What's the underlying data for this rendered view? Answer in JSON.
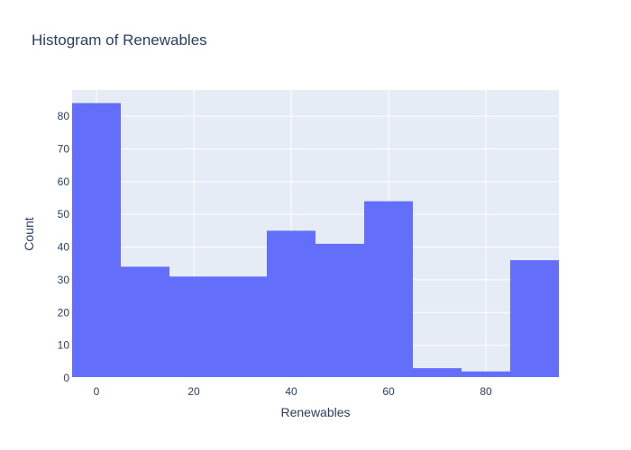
{
  "chart_data": {
    "type": "bar",
    "title": "Histogram of Renewables",
    "xlabel": "Renewables",
    "ylabel": "Count",
    "bin_edges": [
      -5,
      5,
      15,
      25,
      35,
      45,
      55,
      65,
      75,
      85,
      95
    ],
    "values": [
      84,
      34,
      31,
      31,
      45,
      41,
      54,
      3,
      2,
      36
    ],
    "xlim": [
      -5,
      95
    ],
    "ylim": [
      0,
      88
    ],
    "xticks": [
      0,
      20,
      40,
      60,
      80
    ],
    "yticks": [
      0,
      10,
      20,
      30,
      40,
      50,
      60,
      70,
      80
    ],
    "grid": true,
    "legend": "none",
    "colors": {
      "bar": "#636efa",
      "plot_background": "#e5ecf6",
      "grid": "#ffffff",
      "text": "#2a3f5f"
    }
  }
}
